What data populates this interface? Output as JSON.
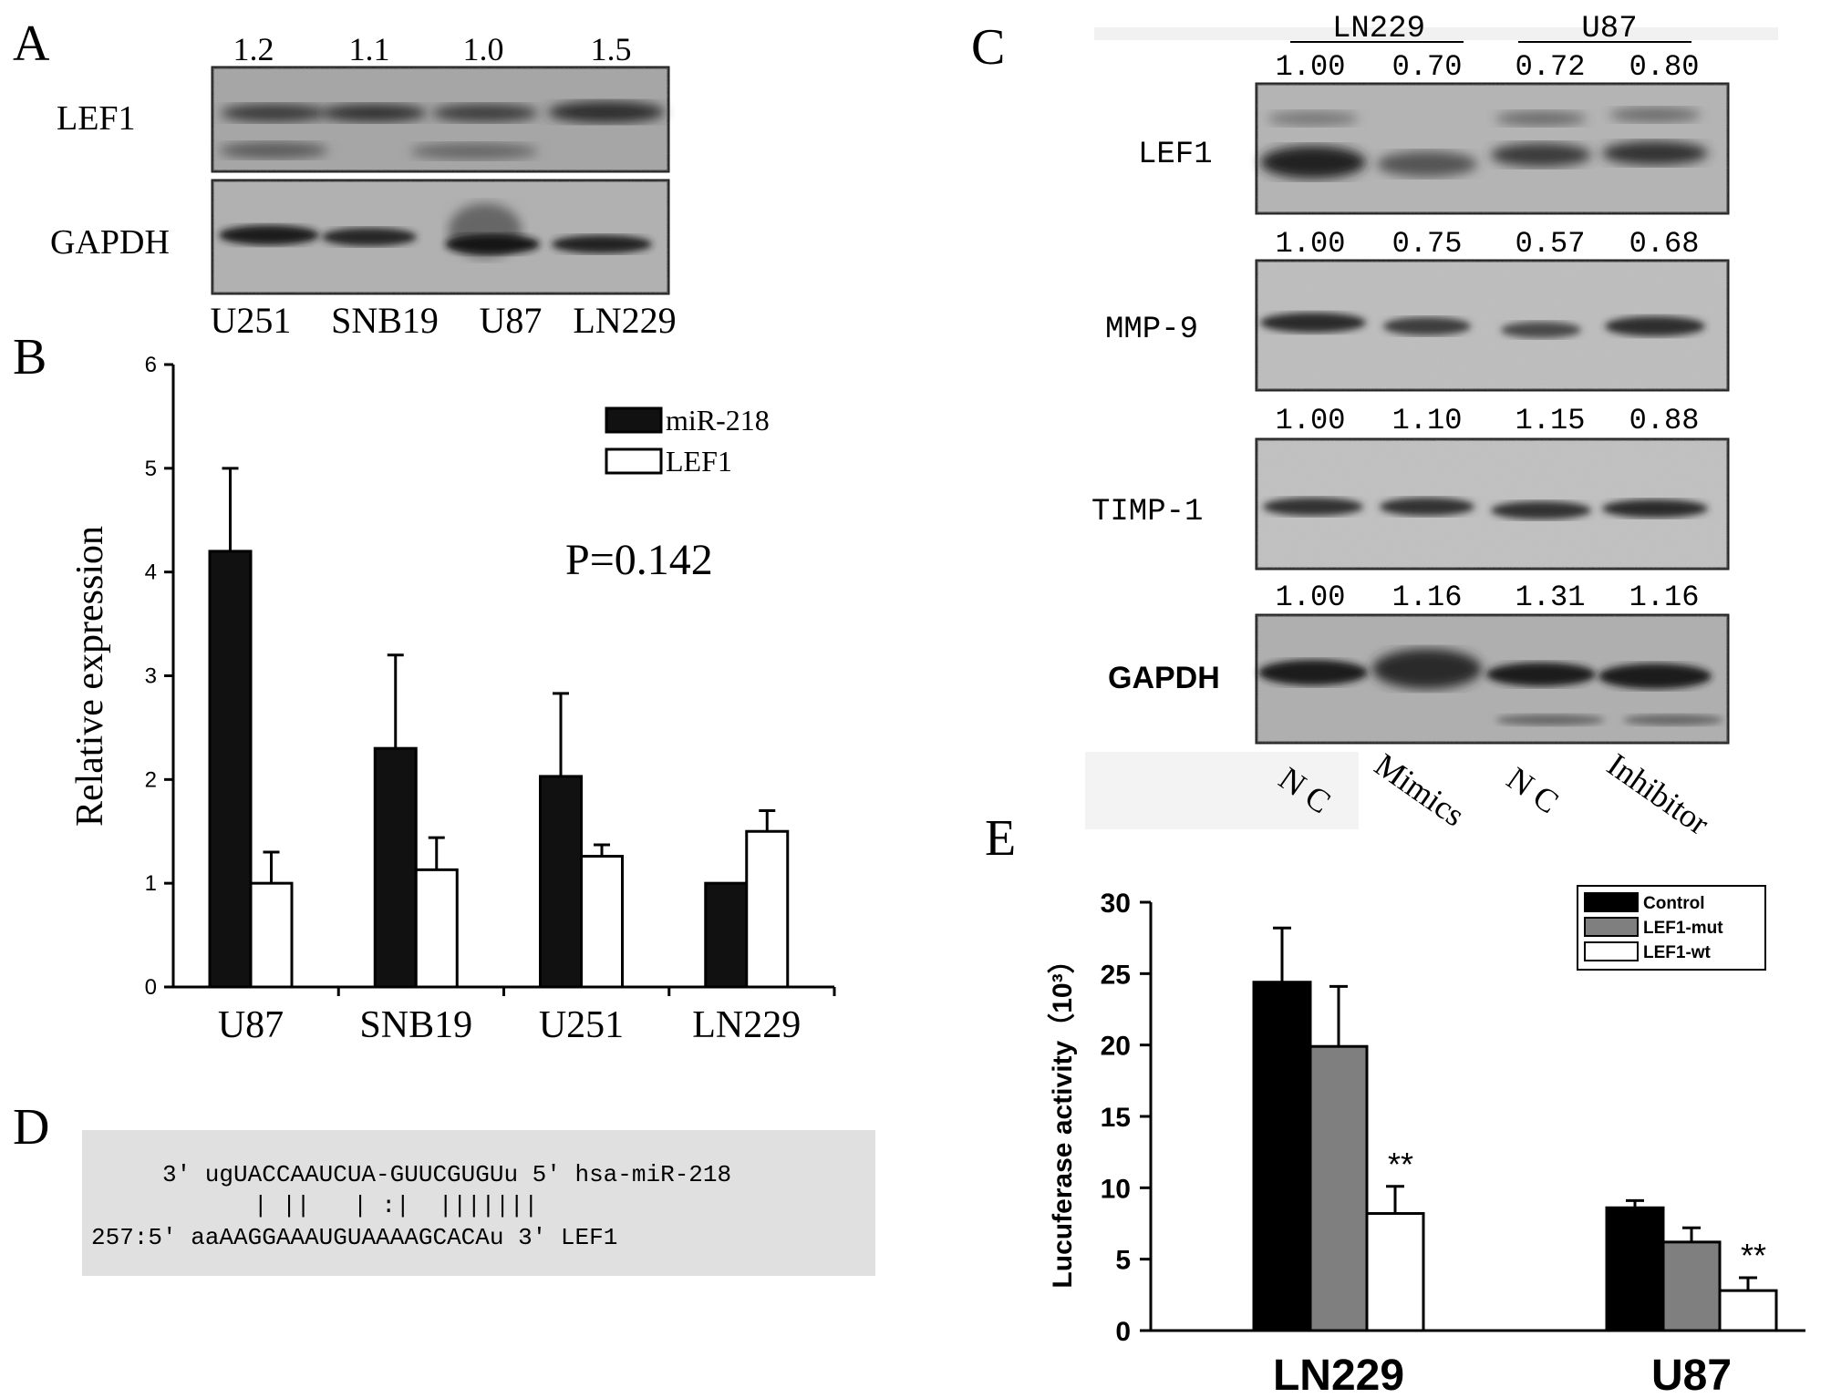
{
  "panel_a": {
    "letter": "A",
    "values": [
      "1.2",
      "1.1",
      "1.0",
      "1.5"
    ],
    "rows": [
      "LEF1",
      "GAPDH"
    ],
    "lanes": [
      "U251",
      "SNB19",
      "U87",
      "LN229"
    ]
  },
  "panel_b": {
    "letter": "B",
    "p_value": "P=0.142"
  },
  "panel_c": {
    "letter": "C",
    "groups": [
      "LN229",
      "U87"
    ],
    "blots": [
      {
        "label": "LEF1",
        "values": [
          "1.00",
          "0.70",
          "0.72",
          "0.80"
        ]
      },
      {
        "label": "MMP-9",
        "values": [
          "1.00",
          "0.75",
          "0.57",
          "0.68"
        ]
      },
      {
        "label": "TIMP-1",
        "values": [
          "1.00",
          "1.10",
          "1.15",
          "0.88"
        ]
      },
      {
        "label": "GAPDH",
        "values": [
          "1.00",
          "1.16",
          "1.31",
          "1.16"
        ]
      }
    ],
    "lanes": [
      "N C",
      "Mimics",
      "N C",
      "Inhibitor"
    ]
  },
  "panel_d": {
    "letter": "D",
    "line1": "3' ugUACCAAUCUA-GUUCGUGUu 5' hsa-miR-218",
    "line2": "| ||   | :|  |||||||",
    "line3": "257:5' aaAAGGAAAUGUAAAAGCACAu 3' LEF1"
  },
  "panel_e": {
    "letter": "E"
  },
  "chart_data": [
    {
      "panel": "B",
      "type": "bar",
      "categories": [
        "U87",
        "SNB19",
        "U251",
        "LN229"
      ],
      "series": [
        {
          "name": "miR-218",
          "values": [
            4.2,
            2.3,
            2.03,
            1.0
          ],
          "errors": [
            0.8,
            0.9,
            0.8,
            0.0
          ],
          "color": "#111111"
        },
        {
          "name": "LEF1",
          "values": [
            1.0,
            1.13,
            1.26,
            1.5
          ],
          "errors": [
            0.3,
            0.31,
            0.11,
            0.2
          ],
          "color": "#ffffff"
        }
      ],
      "xlabel": "",
      "ylabel": "Relative expression",
      "ylim": [
        0,
        6
      ],
      "yticks": [
        "0",
        "1",
        "2",
        "3",
        "4",
        "5",
        "6"
      ],
      "legend": "top-right",
      "grid": false
    },
    {
      "panel": "E",
      "type": "bar",
      "categories": [
        "LN229",
        "U87"
      ],
      "series": [
        {
          "name": "Control",
          "values": [
            24.4,
            8.6
          ],
          "errors": [
            3.8,
            0.5
          ],
          "color": "#000000"
        },
        {
          "name": "LEF1-mut",
          "values": [
            19.9,
            6.2
          ],
          "errors": [
            4.2,
            1.0
          ],
          "color": "#7f7f7f"
        },
        {
          "name": "LEF1-wt",
          "values": [
            8.2,
            2.8
          ],
          "errors": [
            1.9,
            0.9
          ],
          "color": "#ffffff"
        }
      ],
      "annotations": [
        "**",
        "**"
      ],
      "xlabel": "",
      "ylabel": "Lucuferase activity（10³）",
      "ylim": [
        0,
        30
      ],
      "yticks": [
        "0",
        "5",
        "10",
        "15",
        "20",
        "25",
        "30"
      ],
      "legend": "top-right",
      "grid": false
    }
  ]
}
